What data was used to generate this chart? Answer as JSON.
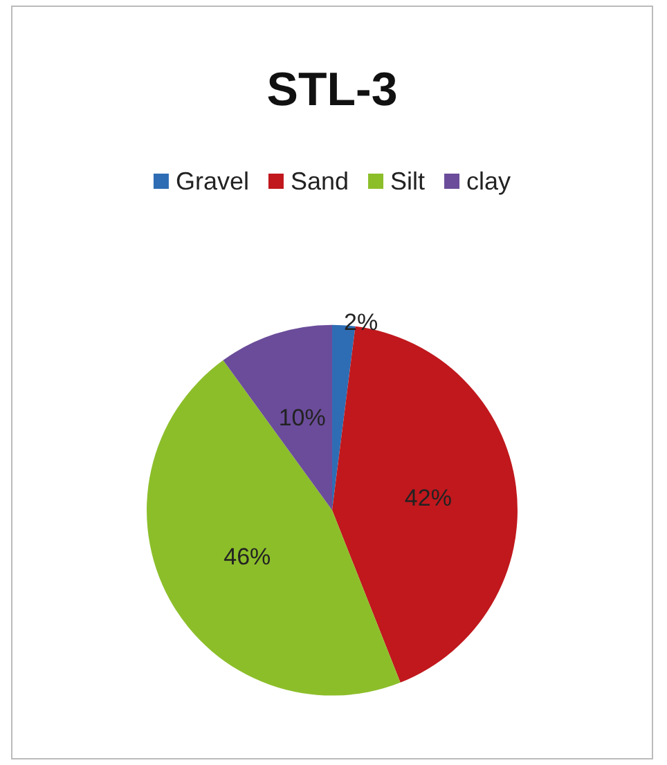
{
  "chart_data": {
    "type": "pie",
    "title": "STL-3",
    "categories": [
      "Gravel",
      "Sand",
      "Silt",
      "clay"
    ],
    "values": [
      2,
      42,
      46,
      10
    ],
    "colors": [
      "#2e6db4",
      "#c0181d",
      "#8cbe2a",
      "#6b4c9a"
    ],
    "value_labels": [
      "2%",
      "42%",
      "46%",
      "10%"
    ],
    "legend": "top"
  }
}
